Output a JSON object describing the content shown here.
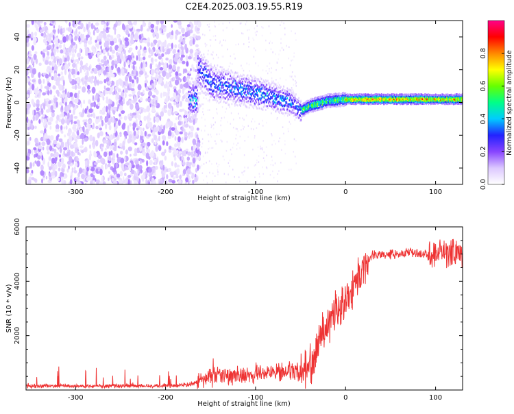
{
  "title": "C2E4.2025.003.19.55.R19",
  "chart_data": [
    {
      "type": "heatmap",
      "xlabel": "Height of straight line (km)",
      "ylabel": "Frequency (Hz)",
      "xlim": [
        -355,
        130
      ],
      "ylim": [
        -50,
        50
      ],
      "xticks": [
        -300,
        -200,
        -100,
        0,
        100
      ],
      "yticks": [
        -40,
        -20,
        0,
        20,
        40
      ],
      "colorbar": {
        "label": "Normalized spectral amplitude",
        "range": [
          0,
          1
        ],
        "ticks": [
          0.0,
          0.2,
          0.4,
          0.6,
          0.8
        ],
        "tick_labels": [
          "0.0",
          "0.2",
          "0.4",
          "0.6",
          "0.8"
        ],
        "colormap": [
          "#ffffff",
          "#dcc8ff",
          "#8844ff",
          "#2222ff",
          "#00ccff",
          "#00ff88",
          "#66ff00",
          "#ffff00",
          "#ff8800",
          "#ff0000",
          "#ff0088"
        ]
      },
      "regions": [
        {
          "description": "noise",
          "x_range": [
            -355,
            -162
          ],
          "f_range": [
            -50,
            50
          ],
          "amplitude": "0.0-0.15"
        },
        {
          "description": "sparse noise",
          "x_range": [
            -162,
            -55
          ],
          "f_range": [
            -50,
            50
          ],
          "amplitude": "0.0-0.05"
        },
        {
          "description": "signal band",
          "x_range": [
            -175,
            130
          ],
          "center_freq": [
            [
              -165,
              22
            ],
            [
              -150,
              12
            ],
            [
              -120,
              8
            ],
            [
              -100,
              6
            ],
            [
              -80,
              3
            ],
            [
              -60,
              0
            ],
            [
              -50,
              -5
            ],
            [
              -40,
              -2
            ],
            [
              -20,
              1
            ],
            [
              0,
              2
            ],
            [
              20,
              2
            ],
            [
              130,
              2
            ]
          ],
          "amplitude": "0.2-1.0"
        }
      ]
    },
    {
      "type": "line",
      "xlabel": "Height of straight line (km)",
      "ylabel": "SNR (10 * v/v)",
      "xlim": [
        -355,
        130
      ],
      "ylim": [
        0,
        6000
      ],
      "xticks": [
        -300,
        -200,
        -100,
        0,
        100
      ],
      "yticks": [
        2000,
        4000,
        6000
      ],
      "series": [
        {
          "color": "#ee3333",
          "x": [
            -355,
            -300,
            -250,
            -200,
            -170,
            -160,
            -140,
            -120,
            -100,
            -80,
            -60,
            -50,
            -40,
            -30,
            -20,
            -10,
            0,
            10,
            20,
            30,
            50,
            70,
            90,
            100,
            110,
            120,
            130
          ],
          "y": [
            150,
            150,
            150,
            160,
            200,
            400,
            500,
            550,
            600,
            650,
            700,
            550,
            900,
            1800,
            2500,
            2900,
            3300,
            3900,
            4600,
            4950,
            5000,
            5050,
            5000,
            5000,
            5050,
            5050,
            5100
          ]
        }
      ]
    }
  ]
}
